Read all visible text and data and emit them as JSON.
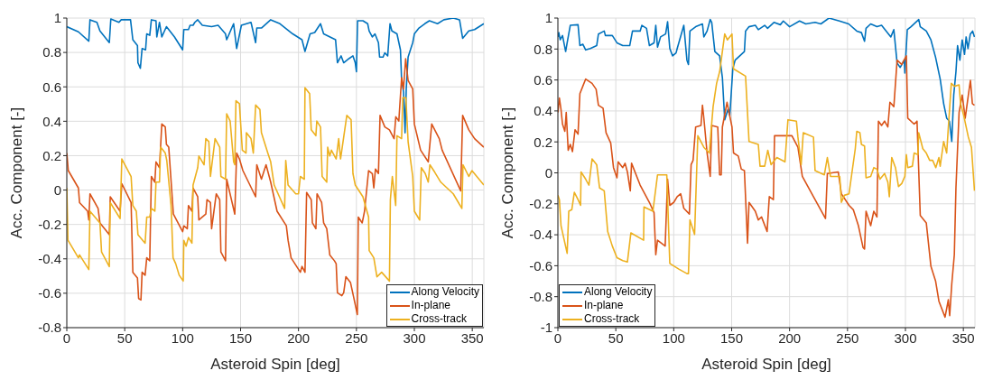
{
  "chart_data": [
    {
      "type": "line",
      "xlabel": "Asteroid Spin [deg]",
      "ylabel": "Acc. Component [-]",
      "xlim": [
        0,
        360
      ],
      "xticks": [
        0,
        50,
        100,
        150,
        200,
        250,
        300,
        350
      ],
      "ylim": [
        -0.8,
        1
      ],
      "yticks": [
        -0.8,
        -0.6,
        -0.4,
        -0.2,
        0,
        0.2,
        0.4,
        0.6,
        0.8,
        1
      ],
      "grid": true,
      "legend": "bottom right",
      "marker": "none",
      "line_style": "solid",
      "series": [
        {
          "name": "Along Velocity",
          "color": "#0072bd",
          "x": [
            0,
            10,
            19,
            20,
            26,
            28.6,
            36.7,
            38,
            45,
            47,
            55,
            57,
            61,
            61.4,
            63.5,
            65,
            68,
            69,
            71.6,
            73,
            77,
            77.7,
            80,
            82,
            86,
            93,
            100,
            101,
            105,
            106.4,
            109,
            110.5,
            113,
            117,
            125,
            130.6,
            137,
            138,
            144,
            146.6,
            150.7,
            159,
            163,
            164,
            168,
            176,
            184,
            195,
            203,
            205.6,
            210,
            214,
            219,
            221.7,
            232,
            233.6,
            236.8,
            239,
            243.5,
            247,
            249,
            250,
            251,
            255.6,
            259.7,
            261,
            263.7,
            266,
            269,
            270,
            273,
            274.5,
            277,
            279,
            280.6,
            285,
            288,
            289,
            290.7,
            292,
            293,
            294.6,
            298.6,
            300,
            304,
            309,
            313,
            320,
            325.5,
            333.6,
            339,
            341.7,
            347,
            352,
            360
          ],
          "values": [
            0.95,
            0.92,
            0.866,
            0.99,
            0.975,
            0.925,
            0.857,
            0.995,
            0.975,
            0.99,
            0.99,
            0.874,
            0.84,
            0.74,
            0.708,
            0.823,
            0.815,
            0.908,
            0.9,
            0.99,
            0.984,
            0.89,
            0.975,
            0.89,
            0.95,
            0.89,
            0.815,
            0.933,
            0.933,
            0.958,
            0.958,
            0.975,
            0.99,
            0.958,
            0.95,
            0.958,
            0.908,
            0.874,
            0.967,
            0.823,
            0.958,
            0.975,
            0.857,
            0.942,
            0.942,
            0.99,
            0.967,
            0.908,
            0.874,
            0.806,
            0.908,
            0.916,
            0.967,
            0.908,
            0.874,
            0.74,
            0.78,
            0.74,
            0.764,
            0.78,
            0.74,
            0.688,
            0.984,
            0.984,
            0.967,
            0.925,
            0.89,
            0.908,
            0.857,
            0.773,
            0.773,
            0.798,
            0.78,
            0.967,
            0.925,
            0.908,
            0.815,
            0.637,
            0.57,
            0.333,
            0.587,
            0.773,
            0.857,
            0.908,
            0.942,
            0.967,
            0.984,
            0.967,
            0.99,
            1.0,
            0.99,
            0.882,
            0.925,
            0.933,
            0.967
          ]
        },
        {
          "name": "In-plane",
          "color": "#d95319",
          "x": [
            0,
            1.3,
            10,
            11,
            18,
            19,
            20,
            27,
            28.6,
            36.7,
            37.5,
            46,
            47.5,
            55.5,
            57,
            61,
            62,
            64,
            65,
            67.6,
            69,
            71.6,
            73,
            76,
            77,
            80,
            82,
            85,
            86,
            88,
            92,
            100,
            101,
            104,
            105,
            108,
            109,
            113,
            114,
            120,
            121,
            124,
            125,
            128,
            129,
            132,
            133,
            137,
            138,
            145,
            146.6,
            149,
            152,
            163,
            164,
            168,
            172,
            176,
            181.5,
            189.5,
            191,
            193.6,
            201.6,
            203,
            205.6,
            207,
            211,
            212,
            215,
            216,
            220,
            221.7,
            224.4,
            227,
            231,
            232.5,
            233.6,
            237.4,
            239,
            240.9,
            244.9,
            247.6,
            250.8,
            251.6,
            255,
            257,
            260.5,
            263.7,
            265,
            266.4,
            269,
            270.4,
            274.5,
            278.5,
            282.5,
            284,
            286.6,
            289,
            290.6,
            292.5,
            294.6,
            298.6,
            300,
            305.4,
            312,
            315,
            321.5,
            324,
            340,
            341.7,
            347,
            352,
            360
          ],
          "values": [
            0.215,
            0.113,
            0.012,
            -0.073,
            -0.123,
            -0.174,
            -0.022,
            -0.107,
            -0.191,
            -0.259,
            -0.039,
            -0.123,
            0.037,
            -0.073,
            -0.478,
            -0.512,
            -0.631,
            -0.639,
            -0.478,
            -0.495,
            -0.394,
            -0.411,
            0.079,
            0.046,
            0.164,
            0.13,
            0.384,
            0.367,
            0.265,
            0.249,
            -0.14,
            -0.242,
            -0.208,
            -0.225,
            -0.09,
            -0.123,
            0.012,
            -0.039,
            -0.174,
            -0.14,
            -0.056,
            -0.073,
            -0.225,
            -0.073,
            -0.022,
            -0.056,
            -0.36,
            -0.411,
            0.063,
            -0.14,
            0.215,
            0.181,
            0.113,
            -0.039,
            0.147,
            0.063,
            0.147,
            0.046,
            -0.123,
            -0.208,
            -0.292,
            -0.394,
            -0.478,
            -0.444,
            -0.478,
            -0.014,
            -0.056,
            -0.191,
            -0.225,
            -0.022,
            -0.073,
            -0.191,
            -0.225,
            -0.377,
            -0.411,
            -0.428,
            -0.597,
            -0.614,
            -0.597,
            -0.504,
            -0.538,
            -0.622,
            -0.724,
            -0.157,
            -0.191,
            -0.123,
            0.113,
            0.096,
            0.012,
            0.122,
            0.096,
            0.434,
            0.367,
            0.35,
            0.299,
            0.426,
            0.401,
            0.654,
            0.587,
            0.764,
            0.637,
            0.587,
            0.384,
            0.232,
            0.164,
            0.384,
            0.299,
            0.232,
            -0.005,
            0.434,
            0.35,
            0.299,
            0.249
          ]
        },
        {
          "name": "Cross-track",
          "color": "#edb120",
          "x": [
            0,
            1,
            10,
            11,
            19,
            20,
            28.6,
            30,
            36.7,
            37.5,
            46,
            47.5,
            55.5,
            57,
            60,
            61.4,
            67.6,
            69,
            71.6,
            73,
            76,
            77,
            80,
            81,
            85,
            86.3,
            90,
            91.7,
            94,
            97,
            100.5,
            101,
            103,
            105,
            108,
            109,
            113,
            114,
            118.5,
            120,
            122.6,
            124,
            128,
            132,
            133,
            137,
            138,
            141,
            144,
            145,
            146,
            149,
            151.5,
            154.7,
            155,
            159,
            161,
            163,
            166.7,
            168,
            173.5,
            176,
            179,
            188,
            189,
            191,
            197.6,
            200,
            201.6,
            205,
            205.6,
            209.6,
            211,
            215,
            215.8,
            219,
            220.4,
            224.4,
            225.2,
            227,
            228.4,
            232.5,
            234.7,
            236.3,
            241.7,
            245.4,
            247,
            249,
            255.6,
            260.5,
            261,
            265,
            267.7,
            271.8,
            278.5,
            279.3,
            281,
            283.9,
            285,
            289,
            290,
            292.7,
            294.6,
            298.6,
            300,
            304.6,
            306,
            309.4,
            312,
            313.4,
            317.5,
            322.8,
            333.6,
            341,
            342,
            347,
            349.7,
            360
          ],
          "values": [
            0.012,
            -0.292,
            -0.394,
            -0.377,
            -0.462,
            -0.123,
            -0.191,
            -0.36,
            -0.445,
            -0.073,
            -0.166,
            0.181,
            0.079,
            -0.09,
            -0.123,
            -0.259,
            -0.309,
            -0.157,
            -0.157,
            -0.107,
            -0.123,
            0.046,
            0.046,
            0.249,
            0.215,
            0.172,
            -0.09,
            -0.394,
            -0.428,
            -0.495,
            -0.529,
            -0.292,
            -0.326,
            -0.276,
            -0.309,
            0.029,
            0.13,
            0.198,
            0.147,
            0.299,
            0.282,
            0.079,
            0.299,
            0.249,
            0.079,
            0.063,
            0.443,
            0.401,
            0.164,
            0.147,
            0.519,
            0.502,
            0.232,
            0.215,
            0.333,
            0.299,
            0.215,
            0.494,
            0.468,
            0.333,
            0.215,
            0.164,
            0.029,
            -0.107,
            0.172,
            0.029,
            -0.022,
            -0.022,
            0.079,
            0.063,
            0.595,
            0.561,
            0.35,
            0.316,
            0.401,
            0.367,
            0.079,
            0.046,
            0.249,
            0.198,
            0.232,
            0.181,
            0.299,
            0.181,
            0.434,
            0.409,
            0.096,
            0.029,
            -0.039,
            -0.157,
            -0.352,
            -0.394,
            -0.504,
            -0.478,
            -0.529,
            -0.056,
            0.079,
            -0.09,
            0.316,
            0.299,
            0.536,
            0.536,
            0.282,
            0.079,
            -0.123,
            -0.174,
            0.13,
            0.096,
            0.046,
            0.147,
            0.105,
            0.046,
            -0.022,
            -0.107,
            0.147,
            0.079,
            0.113,
            0.029
          ]
        }
      ]
    },
    {
      "type": "line",
      "xlabel": "Asteroid Spin [deg]",
      "ylabel": "Acc. Component [-]",
      "xlim": [
        0,
        360
      ],
      "xticks": [
        0,
        50,
        100,
        150,
        200,
        250,
        300,
        350
      ],
      "ylim": [
        -1,
        1
      ],
      "yticks": [
        -1,
        -0.8,
        -0.6,
        -0.4,
        -0.2,
        0,
        0.2,
        0.4,
        0.6,
        0.8,
        1
      ],
      "grid": true,
      "legend": "bottom left",
      "marker": "none",
      "line_style": "solid",
      "series": [
        {
          "name": "Along Velocity",
          "color": "#0072bd",
          "x": [
            0,
            0.8,
            2,
            4,
            6.7,
            8,
            10.7,
            17.4,
            19,
            21.5,
            24,
            28,
            33.5,
            35,
            40,
            41,
            47,
            51,
            56,
            62,
            64.4,
            71,
            72.5,
            76.5,
            79,
            83,
            84.5,
            86,
            88.6,
            93,
            94.7,
            96.6,
            99,
            102,
            103,
            108.7,
            111.4,
            112.7,
            114,
            119,
            124.8,
            126,
            128.8,
            131.5,
            132.8,
            135.5,
            139.6,
            142,
            144,
            146.8,
            148.4,
            151,
            153,
            161,
            162,
            165,
            170.4,
            173,
            178.5,
            181,
            186.5,
            192,
            194.6,
            200,
            208.6,
            214,
            222,
            227,
            234,
            243,
            251,
            258,
            262,
            264.7,
            266,
            270,
            275.4,
            279.4,
            283.4,
            287.4,
            290,
            292.8,
            295.5,
            299,
            299.5,
            301.6,
            304.8,
            311.5,
            312.8,
            318,
            322,
            326,
            330,
            333,
            335.6,
            338,
            340,
            341.7,
            343.6,
            345,
            347,
            349,
            351,
            352.4,
            354,
            356,
            358,
            359.6
          ],
          "values": [
            0.878,
            0.906,
            0.86,
            0.887,
            0.784,
            0.84,
            0.953,
            0.957,
            0.822,
            0.831,
            0.794,
            0.803,
            0.822,
            0.897,
            0.916,
            0.887,
            0.887,
            0.84,
            0.822,
            0.822,
            0.916,
            0.916,
            0.953,
            0.934,
            0.822,
            0.84,
            0.953,
            0.812,
            0.878,
            0.897,
            0.976,
            0.803,
            0.756,
            0.775,
            0.803,
            0.953,
            0.728,
            0.7,
            0.916,
            0.944,
            0.962,
            0.878,
            0.916,
            0.991,
            0.972,
            0.784,
            0.756,
            0.615,
            0.343,
            0.409,
            0.371,
            0.672,
            0.728,
            0.784,
            0.916,
            0.944,
            0.953,
            0.925,
            0.953,
            0.934,
            0.972,
            0.957,
            0.981,
            0.944,
            0.981,
            0.962,
            0.972,
            0.962,
            1.0,
            0.981,
            0.962,
            0.916,
            0.906,
            0.85,
            0.934,
            0.962,
            0.944,
            0.953,
            0.916,
            0.878,
            0.925,
            0.709,
            0.681,
            0.728,
            0.644,
            0.925,
            0.944,
            0.991,
            0.944,
            0.916,
            0.859,
            0.747,
            0.606,
            0.447,
            0.353,
            0.334,
            0.203,
            0.503,
            0.653,
            0.822,
            0.728,
            0.859,
            0.765,
            0.878,
            0.803,
            0.897,
            0.916,
            0.878
          ]
        },
        {
          "name": "In-plane",
          "color": "#d95319",
          "x": [
            0,
            1.3,
            2.7,
            4,
            6,
            7.2,
            8.9,
            10.7,
            12.6,
            14.8,
            17.4,
            19,
            21.5,
            24,
            29.5,
            33,
            35,
            39,
            41.6,
            45.6,
            48,
            51,
            52,
            56,
            58,
            60,
            62.5,
            63.6,
            71,
            79,
            83,
            84.5,
            86,
            92.6,
            94.7,
            96.6,
            100,
            103,
            106,
            108.7,
            113.5,
            115,
            116.7,
            118.9,
            123.5,
            124.8,
            126,
            128.8,
            131.5,
            132.8,
            138,
            139.6,
            141,
            142,
            146,
            150.3,
            151.6,
            155.7,
            158.3,
            161,
            163.7,
            165,
            170.4,
            173,
            175.8,
            180.6,
            182.5,
            186,
            187,
            202,
            207.2,
            211,
            220.6,
            231,
            232.6,
            242,
            244.7,
            251.3,
            255,
            259.4,
            263.4,
            264.7,
            266,
            270,
            272.7,
            275.4,
            276.7,
            279.4,
            282,
            284.8,
            286.6,
            290,
            292.8,
            296.8,
            300.8,
            302,
            307.5,
            310,
            312.8,
            318,
            322,
            326,
            328.9,
            334.2,
            337,
            338.2,
            340,
            342.2,
            343.6,
            346.3,
            349,
            351.6,
            355,
            356.1,
            357.8,
            359.6
          ],
          "values": [
            0.39,
            0.484,
            0.409,
            0.315,
            0.268,
            0.39,
            0.146,
            0.184,
            0.137,
            0.278,
            0.25,
            0.512,
            0.559,
            0.606,
            0.578,
            0.54,
            0.437,
            0.418,
            0.259,
            0.193,
            0.034,
            -0.032,
            0.071,
            0.034,
            0.062,
            0.006,
            -0.116,
            0.062,
            -0.079,
            -0.191,
            -0.257,
            -0.529,
            -0.435,
            -0.473,
            -0.041,
            -0.21,
            -0.191,
            -0.154,
            -0.135,
            -0.229,
            -0.266,
            0.053,
            0.081,
            0.296,
            0.306,
            0.437,
            0.353,
            0.128,
            -0.023,
            0.306,
            0.296,
            -0.013,
            -0.013,
            0.296,
            0.456,
            0.296,
            0.128,
            0.109,
            0.024,
            0.015,
            -0.454,
            -0.191,
            -0.248,
            -0.304,
            -0.285,
            -0.379,
            -0.154,
            -0.173,
            0.24,
            0.24,
            0.165,
            -0.023,
            -0.154,
            -0.295,
            -0.004,
            0.006,
            -0.135,
            -0.21,
            -0.238,
            -0.341,
            -0.482,
            -0.492,
            -0.248,
            -0.341,
            -0.248,
            -0.285,
            0.334,
            0.306,
            0.334,
            0.296,
            0.456,
            0.428,
            0.728,
            0.7,
            0.756,
            0.353,
            0.315,
            0.334,
            -0.276,
            -0.323,
            -0.604,
            -0.698,
            -0.829,
            -0.932,
            -0.82,
            -0.923,
            -0.717,
            -0.529,
            -0.098,
            0.39,
            0.503,
            0.353,
            0.54,
            0.597,
            0.447,
            0.437
          ]
        },
        {
          "name": "Cross-track",
          "color": "#edb120",
          "x": [
            0,
            1.3,
            2.7,
            8,
            9.4,
            12,
            14.2,
            17.4,
            19.6,
            20,
            24,
            26.8,
            29.5,
            33.5,
            36,
            40,
            43,
            47,
            51,
            56,
            60,
            63,
            74,
            74.3,
            82,
            86,
            94,
            96.6,
            100.6,
            104.7,
            111.4,
            112.7,
            114,
            118,
            120.8,
            126,
            130.7,
            132.3,
            134,
            137,
            139.6,
            141,
            144,
            146.3,
            150.3,
            151.6,
            162,
            165,
            173,
            174.5,
            178.5,
            181.2,
            184,
            189,
            196,
            198.6,
            205.9,
            207.2,
            210,
            211.8,
            220.6,
            222,
            230,
            232.6,
            235.3,
            243.3,
            244.7,
            247.3,
            251.3,
            256.7,
            258,
            260.7,
            262,
            264.7,
            266,
            270,
            272.7,
            275.4,
            278,
            282,
            284.8,
            286.1,
            288.2,
            291.4,
            294,
            296.8,
            299.5,
            300.8,
            302,
            306,
            307.5,
            310.7,
            311.5,
            315,
            318,
            320.9,
            323.5,
            326.2,
            328.9,
            330,
            333,
            335.6,
            336.9,
            339.6,
            342.2,
            346.3,
            347.6,
            350.3,
            354.3,
            357,
            359.6
          ],
          "values": [
            -0.145,
            -0.173,
            -0.341,
            -0.52,
            -0.248,
            -0.238,
            -0.126,
            -0.173,
            -0.21,
            0.006,
            -0.041,
            -0.079,
            0.09,
            0.053,
            -0.098,
            -0.116,
            -0.379,
            -0.473,
            -0.548,
            -0.567,
            -0.576,
            -0.388,
            -0.435,
            -0.22,
            -0.248,
            -0.013,
            -0.013,
            -0.585,
            -0.604,
            -0.623,
            -0.651,
            -0.651,
            -0.304,
            -0.398,
            0.24,
            0.165,
            0.128,
            0.278,
            0.428,
            0.578,
            0.653,
            0.728,
            0.897,
            0.859,
            0.897,
            0.672,
            0.625,
            0.203,
            0.184,
            0.043,
            0.043,
            0.146,
            0.053,
            0.099,
            0.071,
            0.343,
            0.334,
            0.231,
            0.053,
            0.259,
            0.231,
            0.015,
            -0.013,
            0.099,
            -0.023,
            -0.023,
            -0.191,
            -0.145,
            -0.135,
            0.156,
            0.268,
            0.259,
            0.184,
            0.174,
            -0.032,
            -0.023,
            0.034,
            0.024,
            -0.041,
            -0.004,
            -0.06,
            -0.154,
            0.099,
            0.034,
            -0.088,
            -0.069,
            -0.023,
            0.118,
            0.034,
            0.043,
            0.128,
            0.118,
            0.259,
            0.156,
            0.128,
            0.081,
            0.081,
            0.034,
            0.099,
            0.043,
            0.203,
            0.128,
            0.278,
            0.578,
            0.559,
            0.568,
            0.447,
            0.371,
            0.231,
            0.165,
            -0.116
          ]
        }
      ]
    }
  ]
}
